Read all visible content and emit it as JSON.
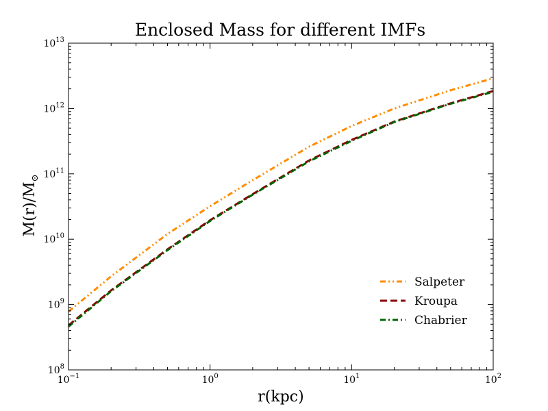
{
  "chart_data": {
    "type": "line",
    "title": "Enclosed Mass for different IMFs",
    "xlabel": "r(kpc)",
    "ylabel_main": "M(r)/M",
    "ylabel_sub": "⊙",
    "xscale": "log",
    "yscale": "log",
    "xlim": [
      0.1,
      100
    ],
    "ylim": [
      100000000.0,
      10000000000000.0
    ],
    "x_ticks": [
      {
        "base": "10",
        "exp": "−1",
        "value": 0.1
      },
      {
        "base": "10",
        "exp": "0",
        "value": 1
      },
      {
        "base": "10",
        "exp": "1",
        "value": 10
      },
      {
        "base": "10",
        "exp": "2",
        "value": 100
      }
    ],
    "y_ticks": [
      {
        "base": "10",
        "exp": "8",
        "value": 100000000.0
      },
      {
        "base": "10",
        "exp": "9",
        "value": 1000000000.0
      },
      {
        "base": "10",
        "exp": "10",
        "value": 10000000000.0
      },
      {
        "base": "10",
        "exp": "11",
        "value": 100000000000.0
      },
      {
        "base": "10",
        "exp": "12",
        "value": 1000000000000.0
      },
      {
        "base": "10",
        "exp": "13",
        "value": 10000000000000.0
      }
    ],
    "legend_position": "lower-right",
    "x": [
      0.1,
      0.2,
      0.5,
      1,
      2,
      5,
      10,
      20,
      50,
      100
    ],
    "series": [
      {
        "name": "Salpeter",
        "color": "#ff8c00",
        "style": "dash-dot-dot",
        "values": [
          780000000.0,
          2700000000.0,
          12000000000.0,
          32000000000.0,
          80000000000.0,
          260000000000.0,
          540000000000.0,
          1000000000000.0,
          1900000000000.0,
          2900000000000.0
        ]
      },
      {
        "name": "Kroupa",
        "color": "#8b0000",
        "style": "dashed",
        "values": [
          480000000.0,
          1650000000.0,
          7000000000.0,
          19500000000.0,
          49000000000.0,
          160000000000.0,
          330000000000.0,
          630000000000.0,
          1200000000000.0,
          1850000000000.0
        ]
      },
      {
        "name": "Chabrier",
        "color": "#006400",
        "style": "dash-dot",
        "values": [
          460000000.0,
          1600000000.0,
          6800000000.0,
          19000000000.0,
          48000000000.0,
          155000000000.0,
          320000000000.0,
          620000000000.0,
          1180000000000.0,
          1800000000000.0
        ]
      }
    ]
  }
}
